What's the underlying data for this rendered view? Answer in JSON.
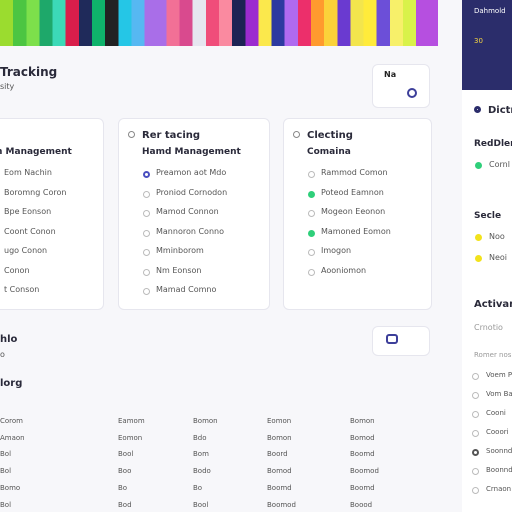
{
  "header": {
    "title": "Tracking",
    "subtitle": "sity",
    "button": "Na"
  },
  "cards": [
    {
      "subtitle": "h Management",
      "items": [
        "Eom Nachin",
        "Boromng Coron",
        "Bpe Eonson",
        "Coont Conon",
        "ugo Conon",
        "Conon",
        "t Conson"
      ]
    },
    {
      "title": "Rer tacing",
      "subtitle": "Hamd Management",
      "items": [
        "Preamon aot Mdo",
        "Proniod Cornodon",
        "Mamod Connon",
        "Mannoron Conno",
        "Mminborom",
        "Nm Eonson",
        "Mamad Comno"
      ],
      "active": [
        0
      ]
    },
    {
      "title": "Clecting",
      "subtitle": "Comaina",
      "items": [
        "Rammod Comon",
        "Poteod Eamnon",
        "Mogeon Eeonon",
        "Mamoned Eomon",
        "Imogon",
        "Aooniomon"
      ],
      "active": [
        1,
        3
      ]
    }
  ],
  "section": {
    "title": "hlo",
    "subtitle": "o"
  },
  "table": {
    "title": "lorg",
    "rows": [
      [
        "Corom",
        "Eamom",
        "Bomon",
        "Eomon",
        "Bomon"
      ],
      [
        "Amaon",
        "Eomon",
        "Bdo",
        "Bomon",
        "Bomod"
      ],
      [
        "Bol",
        "Bool",
        "Bom",
        "Boord",
        "Boomd"
      ],
      [
        "Bol",
        "Boo",
        "Bodo",
        "Bomod",
        "Boomod"
      ],
      [
        "Bomo",
        "Bo",
        "Bo",
        "Boomd",
        "Boomd"
      ],
      [
        "Bol",
        "Bod",
        "Bool",
        "Boomod",
        "Boood"
      ]
    ]
  },
  "sidebar": {
    "brand": "Dahmold",
    "count": "30",
    "title": "Dictribu",
    "group1": "RedDlere",
    "status1": "Cornl",
    "group2": "Secle",
    "status2": [
      "Noo",
      "Neoi"
    ],
    "group3": "Activam",
    "note": "Crnotio",
    "caption": "Romer nos",
    "items": [
      "Voem P",
      "Vom Ba",
      "Cooni",
      "Cooori",
      "Soonnd",
      "Boonnd",
      "Crnaon"
    ],
    "selected": 4
  }
}
